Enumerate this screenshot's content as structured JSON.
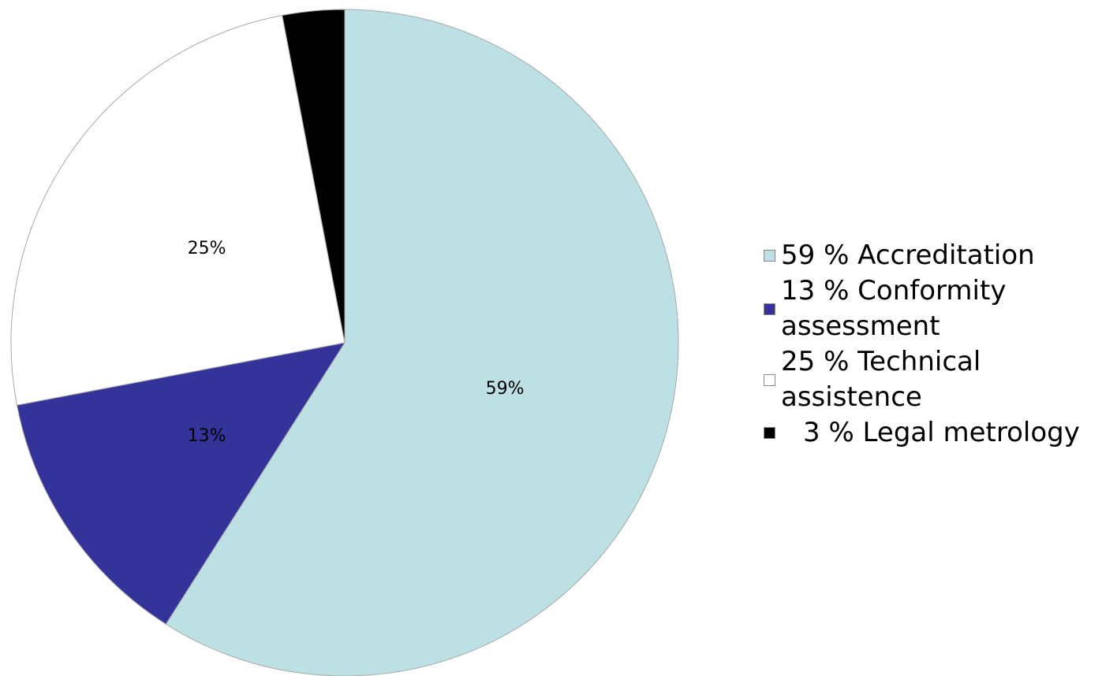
{
  "chart_data": {
    "type": "pie",
    "title": "",
    "start_angle_deg": 0,
    "direction": "clockwise",
    "legend_position": "right",
    "slices": [
      {
        "name": "Accreditation",
        "value": 59,
        "label": "59%",
        "legend": "59 % Accreditation",
        "color": "#bce0e3"
      },
      {
        "name": "Conformity assessment",
        "value": 13,
        "label": "13%",
        "legend": "13 % Conformity assessment",
        "color": "#333399"
      },
      {
        "name": "Technical assistence",
        "value": 25,
        "label": "25%",
        "legend": "25 % Technical assistence",
        "color": "#ffffff"
      },
      {
        "name": "Legal metrology",
        "value": 3,
        "label": "",
        "legend": "3 % Legal metrology",
        "color": "#000000"
      }
    ]
  }
}
